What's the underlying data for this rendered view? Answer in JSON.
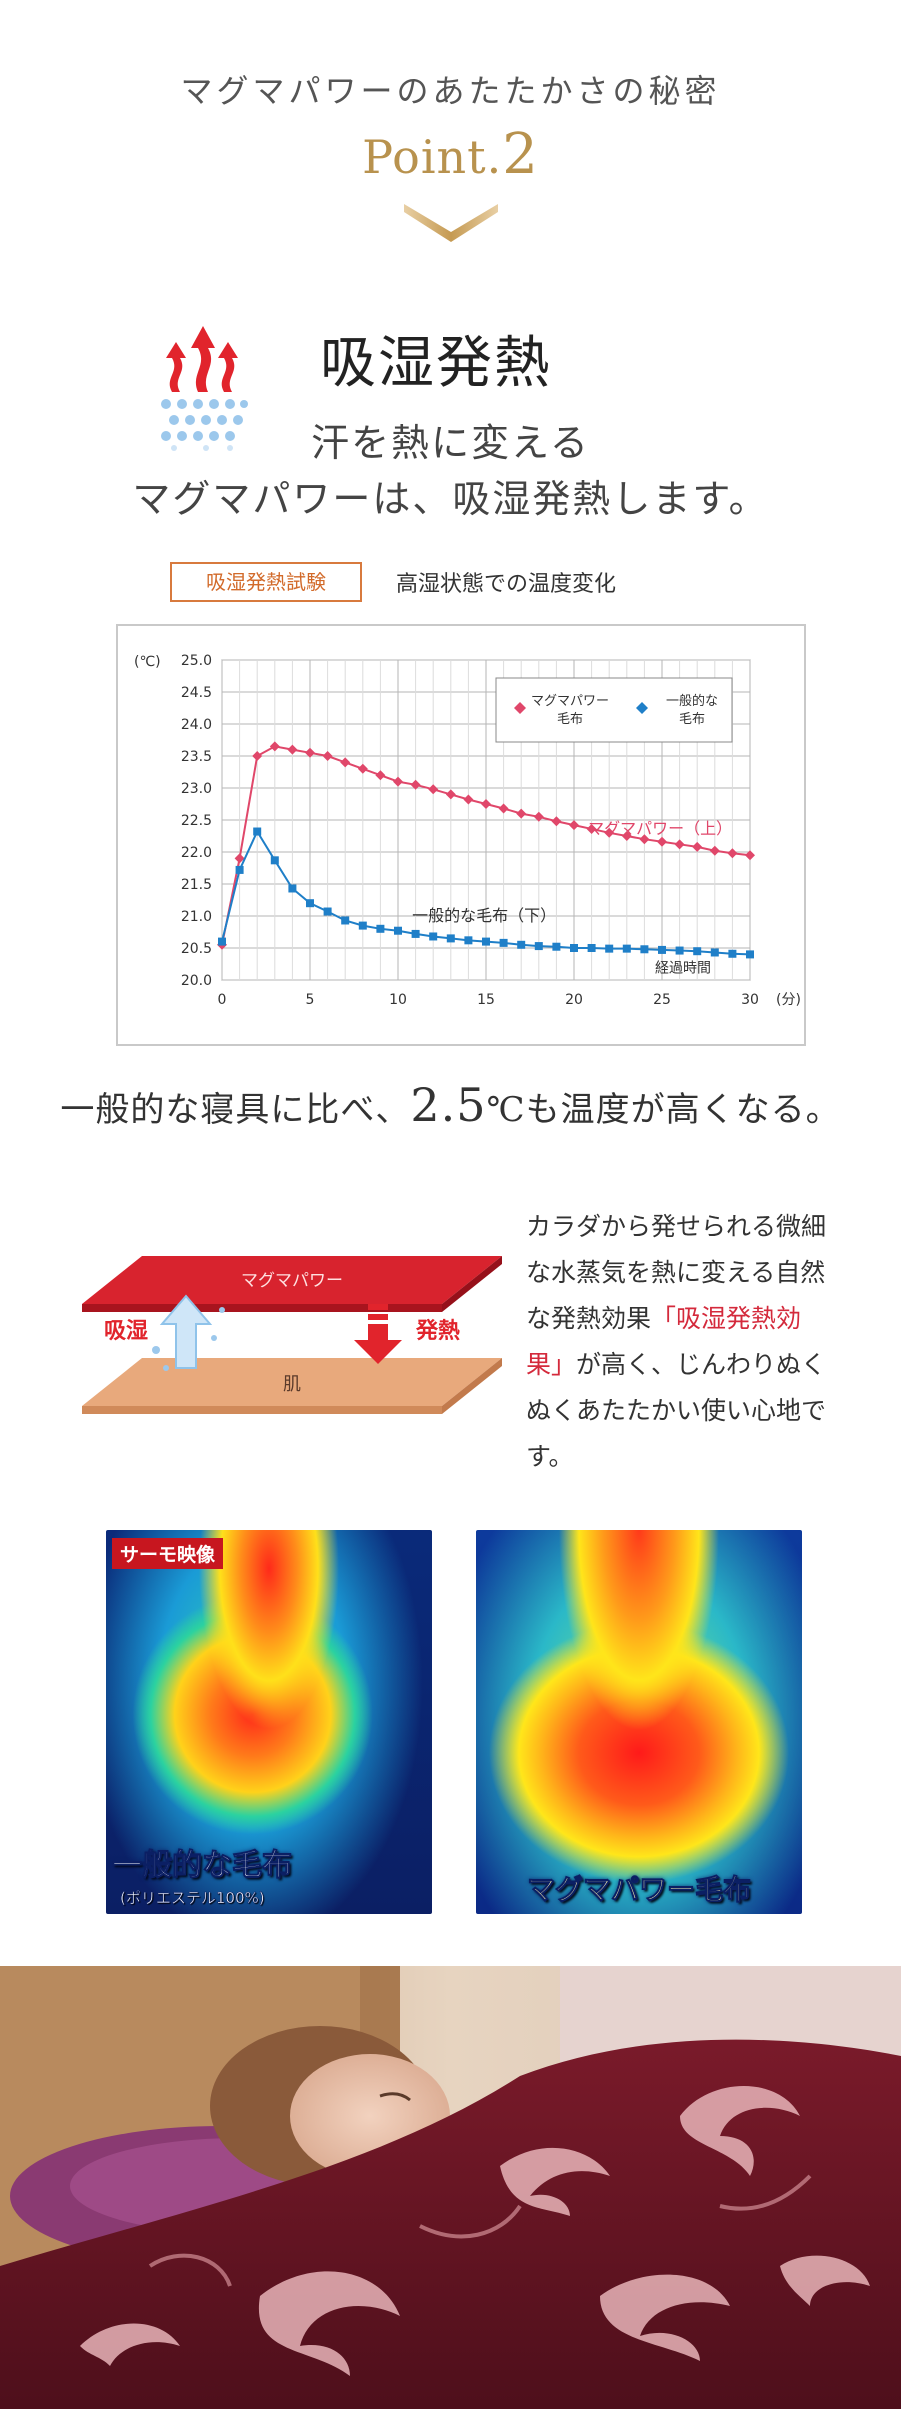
{
  "header": {
    "subtitle": "マグマパワーのあたたかさの秘密",
    "point_label": "Point.",
    "point_number": "2"
  },
  "feature": {
    "title": "吸湿発熱",
    "lead_line1": "汗を熱に変える",
    "lead_line2": "マグマパワーは、吸湿発熱します。",
    "icons": [
      "heat-rising-arrows-icon",
      "moisture-dots-icon"
    ]
  },
  "test": {
    "badge": "吸湿発熱試験",
    "description": "高湿状態での温度変化"
  },
  "chart_data": {
    "type": "line",
    "title": "",
    "ylabel": "(℃)",
    "xlabel": "(分)",
    "ylim": [
      20.0,
      25.0
    ],
    "xlim": [
      0,
      30
    ],
    "y_ticks": [
      "20.0",
      "20.5",
      "21.0",
      "21.5",
      "22.0",
      "22.5",
      "23.0",
      "23.5",
      "24.0",
      "24.5",
      "25.0"
    ],
    "x_ticks": [
      "0",
      "5",
      "10",
      "15",
      "20",
      "25",
      "30"
    ],
    "grid": true,
    "legend_position": "top-right",
    "annotations": {
      "upper": "マグマパワー（上）",
      "lower": "一般的な毛布（下）",
      "elapsed": "経過時間"
    },
    "series": [
      {
        "name": "マグマパワー毛布",
        "legend_line1": "マグマパワー",
        "legend_line2": "毛布",
        "color": "#e0476a",
        "x": [
          0,
          1,
          2,
          3,
          4,
          5,
          6,
          7,
          8,
          9,
          10,
          11,
          12,
          13,
          14,
          15,
          16,
          17,
          18,
          19,
          20,
          21,
          22,
          23,
          24,
          25,
          26,
          27,
          28,
          29,
          30
        ],
        "values": [
          20.55,
          21.9,
          23.5,
          23.65,
          23.6,
          23.55,
          23.5,
          23.4,
          23.3,
          23.2,
          23.1,
          23.05,
          22.98,
          22.9,
          22.82,
          22.75,
          22.68,
          22.6,
          22.55,
          22.48,
          22.42,
          22.36,
          22.3,
          22.25,
          22.2,
          22.16,
          22.12,
          22.08,
          22.02,
          21.98,
          21.95
        ]
      },
      {
        "name": "一般的な毛布",
        "legend_line1": "一般的な",
        "legend_line2": "毛布",
        "color": "#1f7fc8",
        "x": [
          0,
          1,
          2,
          3,
          4,
          5,
          6,
          7,
          8,
          9,
          10,
          11,
          12,
          13,
          14,
          15,
          16,
          17,
          18,
          19,
          20,
          21,
          22,
          23,
          24,
          25,
          26,
          27,
          28,
          29,
          30
        ],
        "values": [
          20.6,
          21.72,
          22.32,
          21.87,
          21.43,
          21.2,
          21.07,
          20.93,
          20.85,
          20.8,
          20.77,
          20.72,
          20.68,
          20.65,
          20.62,
          20.6,
          20.58,
          20.55,
          20.53,
          20.52,
          20.5,
          20.5,
          20.49,
          20.49,
          20.48,
          20.47,
          20.46,
          20.45,
          20.43,
          20.41,
          20.4
        ]
      }
    ]
  },
  "comparison": {
    "prefix": "一般的な寝具に比べ、",
    "value": "2.5",
    "suffix": "℃も温度が高くなる。"
  },
  "diagram": {
    "top_layer": "マグマパワー",
    "bottom_layer": "肌",
    "left_label": "吸湿",
    "right_label": "発熱",
    "top_color": "#d8232e",
    "bottom_color": "#e8a97c"
  },
  "body_copy": {
    "part1": "カラダから発せられる微細な水蒸気を熱に変える自然な発熱効果",
    "highlight": "「吸湿発熱効果」",
    "part2": "が高く、じんわりぬくぬくあたたかい使い心地です。"
  },
  "thermo": {
    "tag": "サーモ映像",
    "left_caption": "一般的な毛布",
    "left_sub": "(ポリエステル100%)",
    "right_caption": "マグマパワー毛布"
  },
  "photo": {
    "description_icon": "sleeping-woman-blanket-photo"
  }
}
